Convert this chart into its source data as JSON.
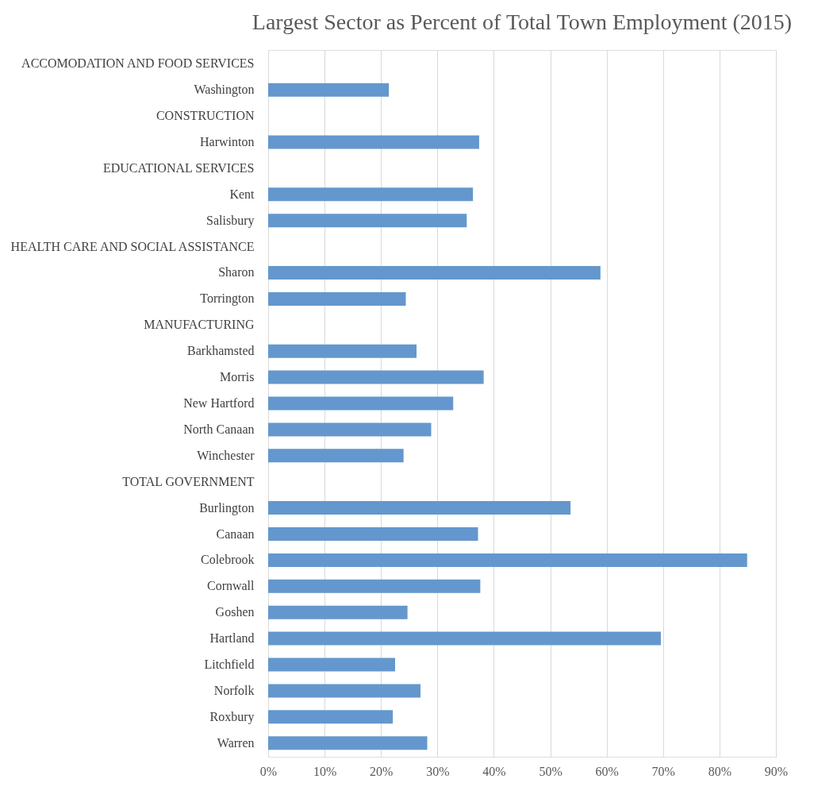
{
  "chart_data": {
    "type": "bar",
    "orientation": "horizontal",
    "title": "Largest Sector as Percent of Total Town Employment (2015)",
    "categories": [
      "ACCOMODATION AND FOOD SERVICES",
      "Washington",
      "CONSTRUCTION",
      "Harwinton",
      "EDUCATIONAL SERVICES",
      "Kent",
      "Salisbury",
      "HEALTH CARE AND SOCIAL ASSISTANCE",
      "Sharon",
      "Torrington",
      "MANUFACTURING",
      "Barkhamsted",
      "Morris",
      "New Hartford",
      "North Canaan",
      "Winchester",
      "TOTAL GOVERNMENT",
      "Burlington",
      "Canaan",
      "Colebrook",
      "Cornwall",
      "Goshen",
      "Hartland",
      "Litchfield",
      "Norfolk",
      "Roxbury",
      "Warren"
    ],
    "values": [
      null,
      21.4,
      null,
      37.4,
      null,
      36.3,
      35.2,
      null,
      58.9,
      24.4,
      null,
      26.3,
      38.2,
      32.8,
      28.9,
      24.0,
      null,
      53.6,
      37.2,
      84.9,
      37.6,
      24.7,
      69.6,
      22.5,
      27.0,
      22.1,
      28.2
    ],
    "color": "#6497cd",
    "xlim": [
      0,
      90
    ],
    "xticks": [
      {
        "value": 0,
        "label": "0%"
      },
      {
        "value": 10,
        "label": "10%"
      },
      {
        "value": 20,
        "label": "20%"
      },
      {
        "value": 30,
        "label": "30%"
      },
      {
        "value": 40,
        "label": "40%"
      },
      {
        "value": 50,
        "label": "50%"
      },
      {
        "value": 60,
        "label": "60%"
      },
      {
        "value": 70,
        "label": "70%"
      },
      {
        "value": 80,
        "label": "80%"
      },
      {
        "value": 90,
        "label": "90%"
      }
    ],
    "grid": "x"
  }
}
